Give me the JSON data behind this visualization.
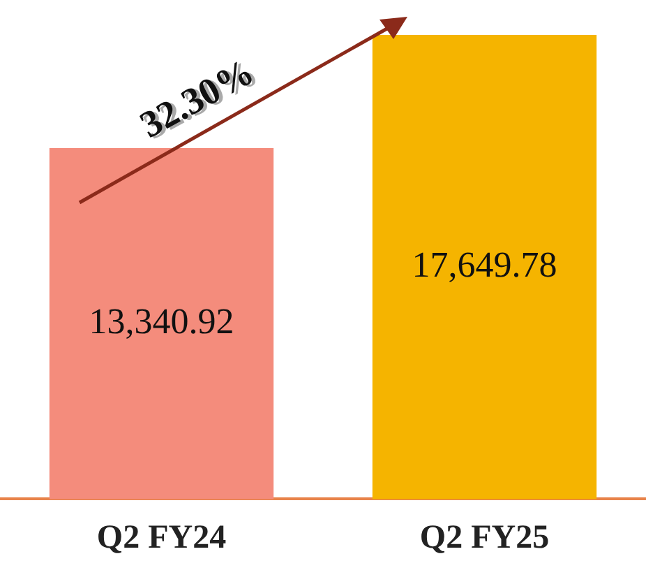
{
  "chart_data": {
    "type": "bar",
    "categories": [
      "Q2 FY24",
      "Q2 FY25"
    ],
    "values": [
      13340.92,
      17649.78
    ],
    "value_labels": [
      "13,340.92",
      "17,649.78"
    ],
    "colors": [
      "#f48c7c",
      "#f5b400"
    ],
    "annotations": [
      "32.30%"
    ],
    "grid": false,
    "legend": false
  }
}
